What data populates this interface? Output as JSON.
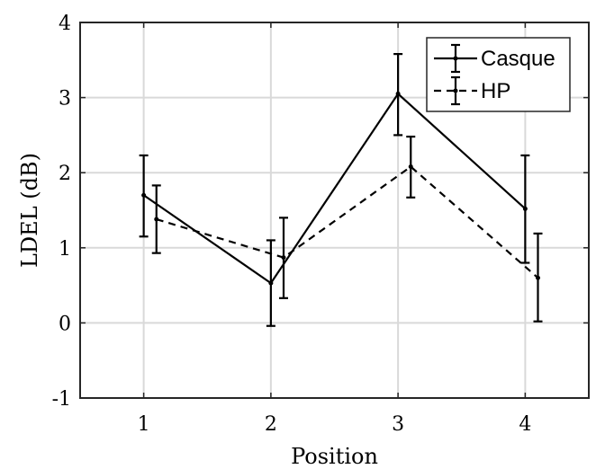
{
  "chart_data": {
    "type": "line",
    "xlabel": "Position",
    "ylabel": "LDEL (dB)",
    "xlim": [
      0.5,
      4.5
    ],
    "ylim": [
      -1,
      4
    ],
    "x_ticks": [
      1,
      2,
      3,
      4
    ],
    "y_ticks": [
      -1,
      0,
      1,
      2,
      3,
      4
    ],
    "grid": true,
    "legend_position": "top-right",
    "series": [
      {
        "name": "Casque",
        "line_style": "solid",
        "x": [
          1,
          2,
          3,
          4
        ],
        "values": [
          1.7,
          0.53,
          3.05,
          1.52
        ],
        "error_low": [
          1.15,
          -0.04,
          2.5,
          0.8
        ],
        "error_high": [
          2.23,
          1.1,
          3.58,
          2.23
        ]
      },
      {
        "name": "HP",
        "line_style": "dashed",
        "x": [
          1.1,
          2.1,
          3.1,
          4.1
        ],
        "values": [
          1.38,
          0.87,
          2.08,
          0.6
        ],
        "error_low": [
          0.93,
          0.33,
          1.67,
          0.02
        ],
        "error_high": [
          1.83,
          1.4,
          2.48,
          1.19
        ]
      }
    ]
  }
}
